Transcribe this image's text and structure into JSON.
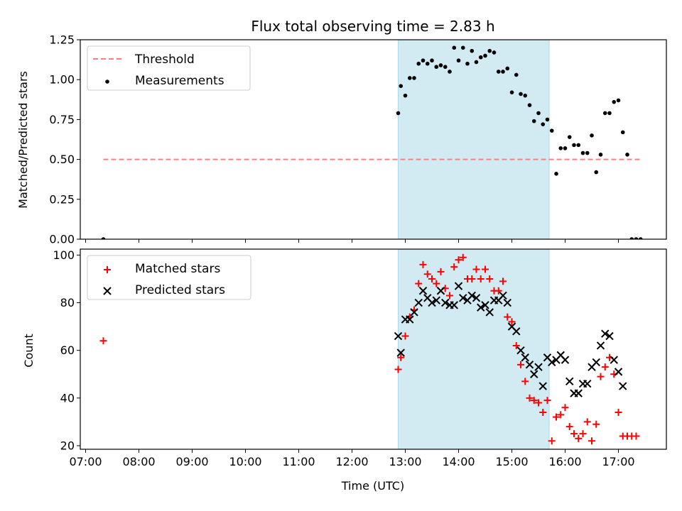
{
  "title": "Flux total observing time = 2.83 h",
  "colors": {
    "threshold": "#ff7f7f",
    "measurement": "#000000",
    "matched": "#ff0000",
    "predicted": "#000000",
    "span": "#add8e6"
  },
  "chart_data": [
    {
      "type": "scatter",
      "panel": "top",
      "ylabel": "Matched/Predicted stars",
      "ylim": [
        0,
        1.25
      ],
      "yticks": [
        0,
        0.25,
        0.5,
        0.75,
        1.0,
        1.25
      ],
      "ytick_labels": [
        "0.00",
        "0.25",
        "0.50",
        "0.75",
        "1.00",
        "1.25"
      ],
      "xlim": [
        "06:54",
        "17:54"
      ],
      "shaded_span": [
        "12:52",
        "15:42"
      ],
      "legend": {
        "placement": "upper-left",
        "entries": [
          "Threshold",
          "Measurements"
        ]
      },
      "threshold": {
        "name": "Threshold",
        "y": 0.5,
        "x_range": [
          "07:20",
          "17:25"
        ]
      },
      "series": [
        {
          "name": "Measurements",
          "points": [
            [
              "07:20",
              0.0
            ],
            [
              "12:52",
              0.79
            ],
            [
              "12:55",
              0.96
            ],
            [
              "13:00",
              0.9
            ],
            [
              "13:05",
              1.01
            ],
            [
              "13:10",
              1.01
            ],
            [
              "13:15",
              1.1
            ],
            [
              "13:20",
              1.12
            ],
            [
              "13:25",
              1.1
            ],
            [
              "13:30",
              1.12
            ],
            [
              "13:35",
              1.08
            ],
            [
              "13:40",
              1.09
            ],
            [
              "13:45",
              1.08
            ],
            [
              "13:50",
              1.05
            ],
            [
              "13:55",
              1.2
            ],
            [
              "14:00",
              1.12
            ],
            [
              "14:05",
              1.2
            ],
            [
              "14:10",
              1.1
            ],
            [
              "14:15",
              1.18
            ],
            [
              "14:20",
              1.11
            ],
            [
              "14:25",
              1.14
            ],
            [
              "14:30",
              1.15
            ],
            [
              "14:35",
              1.18
            ],
            [
              "14:40",
              1.17
            ],
            [
              "14:45",
              1.05
            ],
            [
              "14:50",
              1.05
            ],
            [
              "14:55",
              1.07
            ],
            [
              "15:00",
              0.92
            ],
            [
              "15:05",
              1.03
            ],
            [
              "15:10",
              0.91
            ],
            [
              "15:15",
              0.9
            ],
            [
              "15:20",
              0.84
            ],
            [
              "15:25",
              0.74
            ],
            [
              "15:30",
              0.79
            ],
            [
              "15:35",
              0.72
            ],
            [
              "15:40",
              0.75
            ],
            [
              "15:45",
              0.68
            ],
            [
              "15:50",
              0.41
            ],
            [
              "15:55",
              0.57
            ],
            [
              "16:00",
              0.57
            ],
            [
              "16:05",
              0.64
            ],
            [
              "16:10",
              0.59
            ],
            [
              "16:15",
              0.59
            ],
            [
              "16:20",
              0.54
            ],
            [
              "16:25",
              0.54
            ],
            [
              "16:30",
              0.65
            ],
            [
              "16:35",
              0.42
            ],
            [
              "16:40",
              0.53
            ],
            [
              "16:45",
              0.79
            ],
            [
              "16:50",
              0.79
            ],
            [
              "16:55",
              0.86
            ],
            [
              "17:00",
              0.87
            ],
            [
              "17:05",
              0.67
            ],
            [
              "17:10",
              0.53
            ],
            [
              "17:15",
              0.0
            ],
            [
              "17:20",
              0.0
            ],
            [
              "17:25",
              0.0
            ]
          ]
        }
      ]
    },
    {
      "type": "scatter",
      "panel": "bottom",
      "xlabel": "Time (UTC)",
      "ylabel": "Count",
      "ylim": [
        18.5,
        102.5
      ],
      "yticks": [
        20,
        40,
        60,
        80,
        100
      ],
      "ytick_labels": [
        "20",
        "40",
        "60",
        "80",
        "100"
      ],
      "xlim": [
        "06:54",
        "17:54"
      ],
      "xticks": [
        "07:00",
        "08:00",
        "09:00",
        "10:00",
        "11:00",
        "12:00",
        "13:00",
        "14:00",
        "15:00",
        "16:00",
        "17:00"
      ],
      "xtick_labels": [
        "07:00",
        "08:00",
        "09:00",
        "10:00",
        "11:00",
        "12:00",
        "13:00",
        "14:00",
        "15:00",
        "16:00",
        "17:00"
      ],
      "shaded_span": [
        "12:52",
        "15:42"
      ],
      "legend": {
        "placement": "upper-left",
        "entries": [
          "Matched stars",
          "Predicted stars"
        ]
      },
      "series": [
        {
          "name": "Matched stars",
          "marker": "plus",
          "points": [
            [
              "07:20",
              64
            ],
            [
              "12:52",
              52
            ],
            [
              "12:55",
              57
            ],
            [
              "13:00",
              66
            ],
            [
              "13:05",
              74
            ],
            [
              "13:10",
              77
            ],
            [
              "13:15",
              88
            ],
            [
              "13:20",
              96
            ],
            [
              "13:25",
              92
            ],
            [
              "13:30",
              90
            ],
            [
              "13:35",
              88
            ],
            [
              "13:40",
              93
            ],
            [
              "13:45",
              86
            ],
            [
              "13:50",
              83
            ],
            [
              "13:55",
              95
            ],
            [
              "14:00",
              98
            ],
            [
              "14:05",
              99
            ],
            [
              "14:10",
              90
            ],
            [
              "14:15",
              90
            ],
            [
              "14:20",
              94
            ],
            [
              "14:25",
              90
            ],
            [
              "14:30",
              94
            ],
            [
              "14:35",
              90
            ],
            [
              "14:40",
              85
            ],
            [
              "14:45",
              85
            ],
            [
              "14:50",
              89
            ],
            [
              "14:55",
              74
            ],
            [
              "15:00",
              72
            ],
            [
              "15:05",
              62
            ],
            [
              "15:10",
              54
            ],
            [
              "15:15",
              47
            ],
            [
              "15:20",
              40
            ],
            [
              "15:25",
              39
            ],
            [
              "15:30",
              38
            ],
            [
              "15:35",
              34
            ],
            [
              "15:40",
              39
            ],
            [
              "15:45",
              22
            ],
            [
              "15:50",
              32
            ],
            [
              "15:55",
              33
            ],
            [
              "16:00",
              36
            ],
            [
              "16:05",
              28
            ],
            [
              "16:10",
              25
            ],
            [
              "16:15",
              23
            ],
            [
              "16:20",
              25
            ],
            [
              "16:25",
              30
            ],
            [
              "16:30",
              22
            ],
            [
              "16:35",
              29
            ],
            [
              "16:40",
              49
            ],
            [
              "16:45",
              53
            ],
            [
              "16:50",
              57
            ],
            [
              "16:55",
              50
            ],
            [
              "17:00",
              34
            ],
            [
              "17:05",
              24
            ],
            [
              "17:10",
              24
            ],
            [
              "17:15",
              24
            ],
            [
              "17:20",
              24
            ]
          ]
        },
        {
          "name": "Predicted stars",
          "marker": "x",
          "points": [
            [
              "12:52",
              66
            ],
            [
              "12:55",
              59
            ],
            [
              "13:00",
              73
            ],
            [
              "13:05",
              73
            ],
            [
              "13:10",
              76
            ],
            [
              "13:15",
              80
            ],
            [
              "13:20",
              85
            ],
            [
              "13:25",
              82
            ],
            [
              "13:30",
              80
            ],
            [
              "13:35",
              81
            ],
            [
              "13:40",
              85
            ],
            [
              "13:45",
              80
            ],
            [
              "13:50",
              79
            ],
            [
              "13:55",
              79
            ],
            [
              "14:00",
              87
            ],
            [
              "14:05",
              82
            ],
            [
              "14:10",
              81
            ],
            [
              "14:15",
              83
            ],
            [
              "14:20",
              82
            ],
            [
              "14:25",
              78
            ],
            [
              "14:30",
              79
            ],
            [
              "14:35",
              76
            ],
            [
              "14:40",
              81
            ],
            [
              "14:45",
              81
            ],
            [
              "14:50",
              83
            ],
            [
              "14:55",
              80
            ],
            [
              "15:00",
              70
            ],
            [
              "15:05",
              68
            ],
            [
              "15:10",
              60
            ],
            [
              "15:15",
              57
            ],
            [
              "15:20",
              54
            ],
            [
              "15:25",
              50
            ],
            [
              "15:30",
              53
            ],
            [
              "15:35",
              45
            ],
            [
              "15:40",
              57
            ],
            [
              "15:45",
              55
            ],
            [
              "15:50",
              56
            ],
            [
              "15:55",
              58
            ],
            [
              "16:00",
              56
            ],
            [
              "16:05",
              47
            ],
            [
              "16:10",
              42
            ],
            [
              "16:15",
              42
            ],
            [
              "16:20",
              46
            ],
            [
              "16:25",
              46
            ],
            [
              "16:30",
              53
            ],
            [
              "16:35",
              55
            ],
            [
              "16:40",
              62
            ],
            [
              "16:45",
              67
            ],
            [
              "16:50",
              66
            ],
            [
              "16:55",
              56
            ],
            [
              "17:00",
              51
            ],
            [
              "17:05",
              45
            ]
          ]
        }
      ]
    }
  ]
}
